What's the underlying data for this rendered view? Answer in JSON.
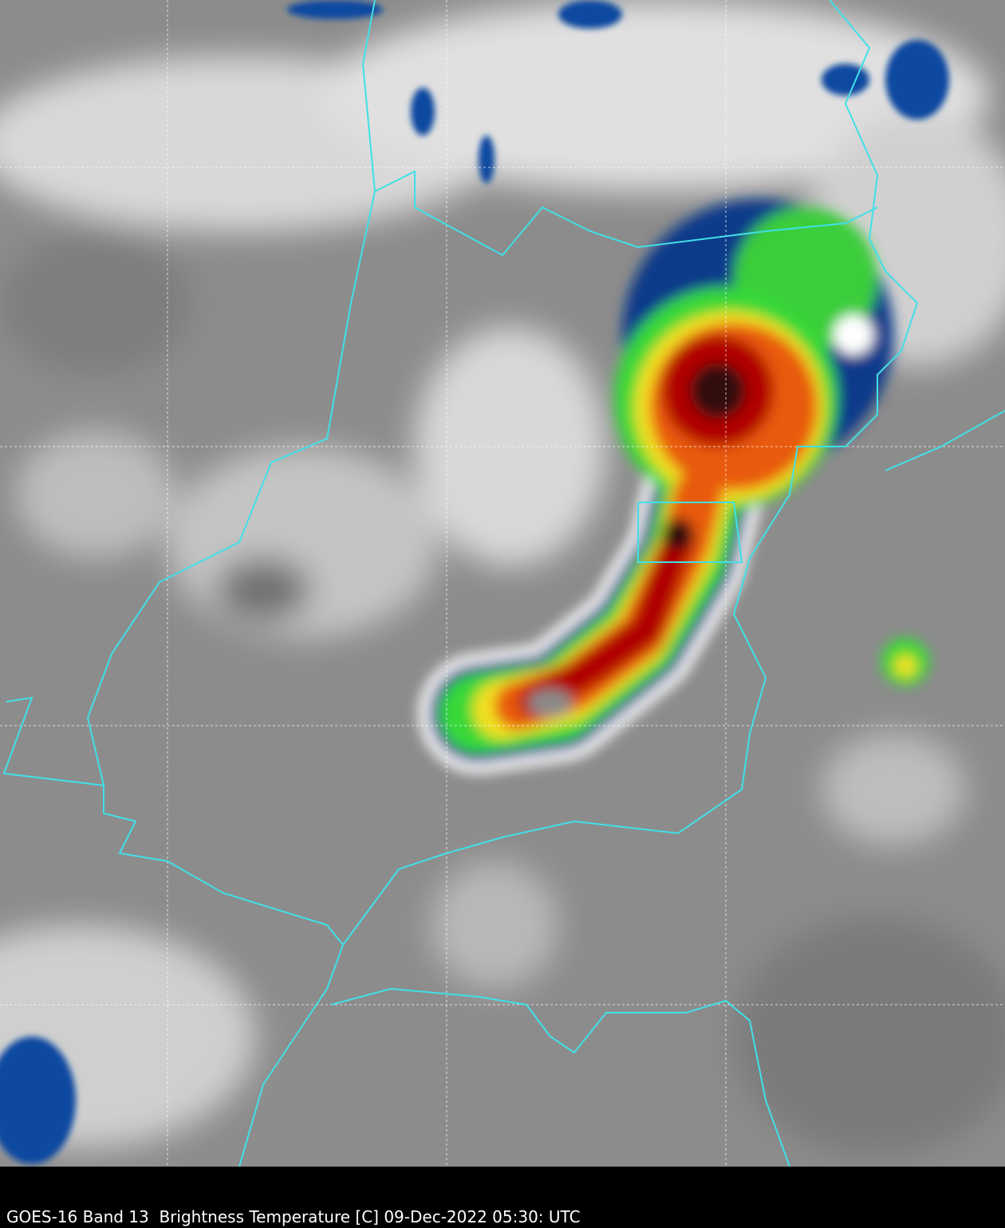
{
  "caption": "GOES-16 Band 13  Brightness Temperature [C] 09-Dec-2022 05:30: UTC"
}
